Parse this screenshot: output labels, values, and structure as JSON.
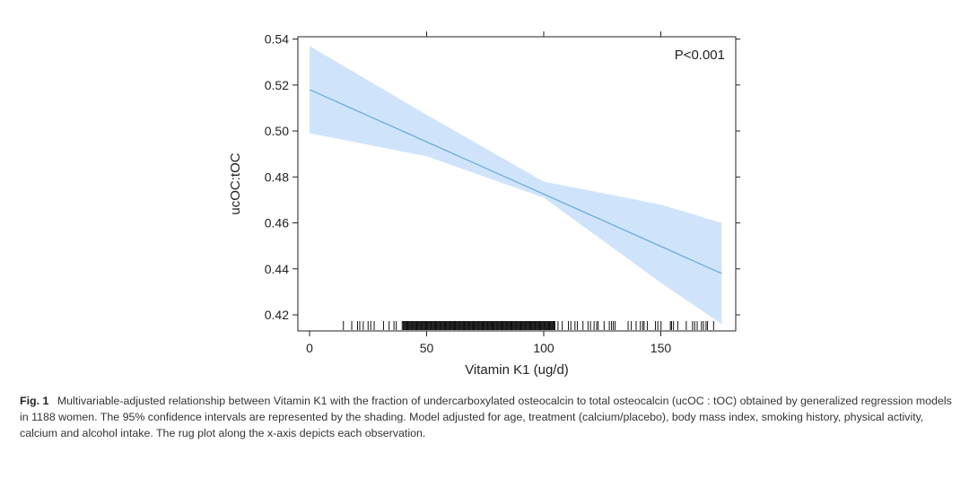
{
  "chart_data": {
    "type": "line",
    "title": "",
    "xlabel": "Vitamin K1 (ug/d)",
    "ylabel": "ucOC:tOC",
    "xlim": [
      -5,
      182
    ],
    "ylim": [
      0.413,
      0.541
    ],
    "xticks": [
      0,
      50,
      100,
      150
    ],
    "yticks": [
      0.42,
      0.44,
      0.46,
      0.48,
      0.5,
      0.52,
      0.54
    ],
    "ytick_labels": [
      "0.42",
      "0.44",
      "0.46",
      "0.48",
      "0.50",
      "0.52",
      "0.54"
    ],
    "top_ticks": [
      50,
      100,
      150
    ],
    "series": [
      {
        "name": "fitted",
        "x": [
          0,
          176
        ],
        "y": [
          0.518,
          0.438
        ],
        "color": "#6aaed6"
      }
    ],
    "confidence_band": {
      "name": "95% CI",
      "x": [
        0,
        50,
        100,
        150,
        176
      ],
      "lower": [
        0.499,
        0.489,
        0.471,
        0.434,
        0.416
      ],
      "upper": [
        0.537,
        0.507,
        0.478,
        0.468,
        0.46
      ],
      "color": "#cfe4fb"
    },
    "annotation": "P<0.001",
    "rug": {
      "x_range": [
        14,
        176
      ],
      "dense_range": [
        40,
        105
      ],
      "count": 1188
    }
  },
  "caption": {
    "label": "Fig. 1",
    "text": "Multivariable-adjusted relationship between Vitamin K1 with the fraction of undercarboxylated osteocalcin to total osteocalcin (ucOC : tOC) obtained by generalized regression models in 1188 women. The 95% confidence intervals are represented by the shading. Model adjusted for age, treatment (calcium/placebo), body mass index, smoking history, physical activity, calcium and alcohol intake. The rug plot along the x-axis depicts each observation."
  }
}
